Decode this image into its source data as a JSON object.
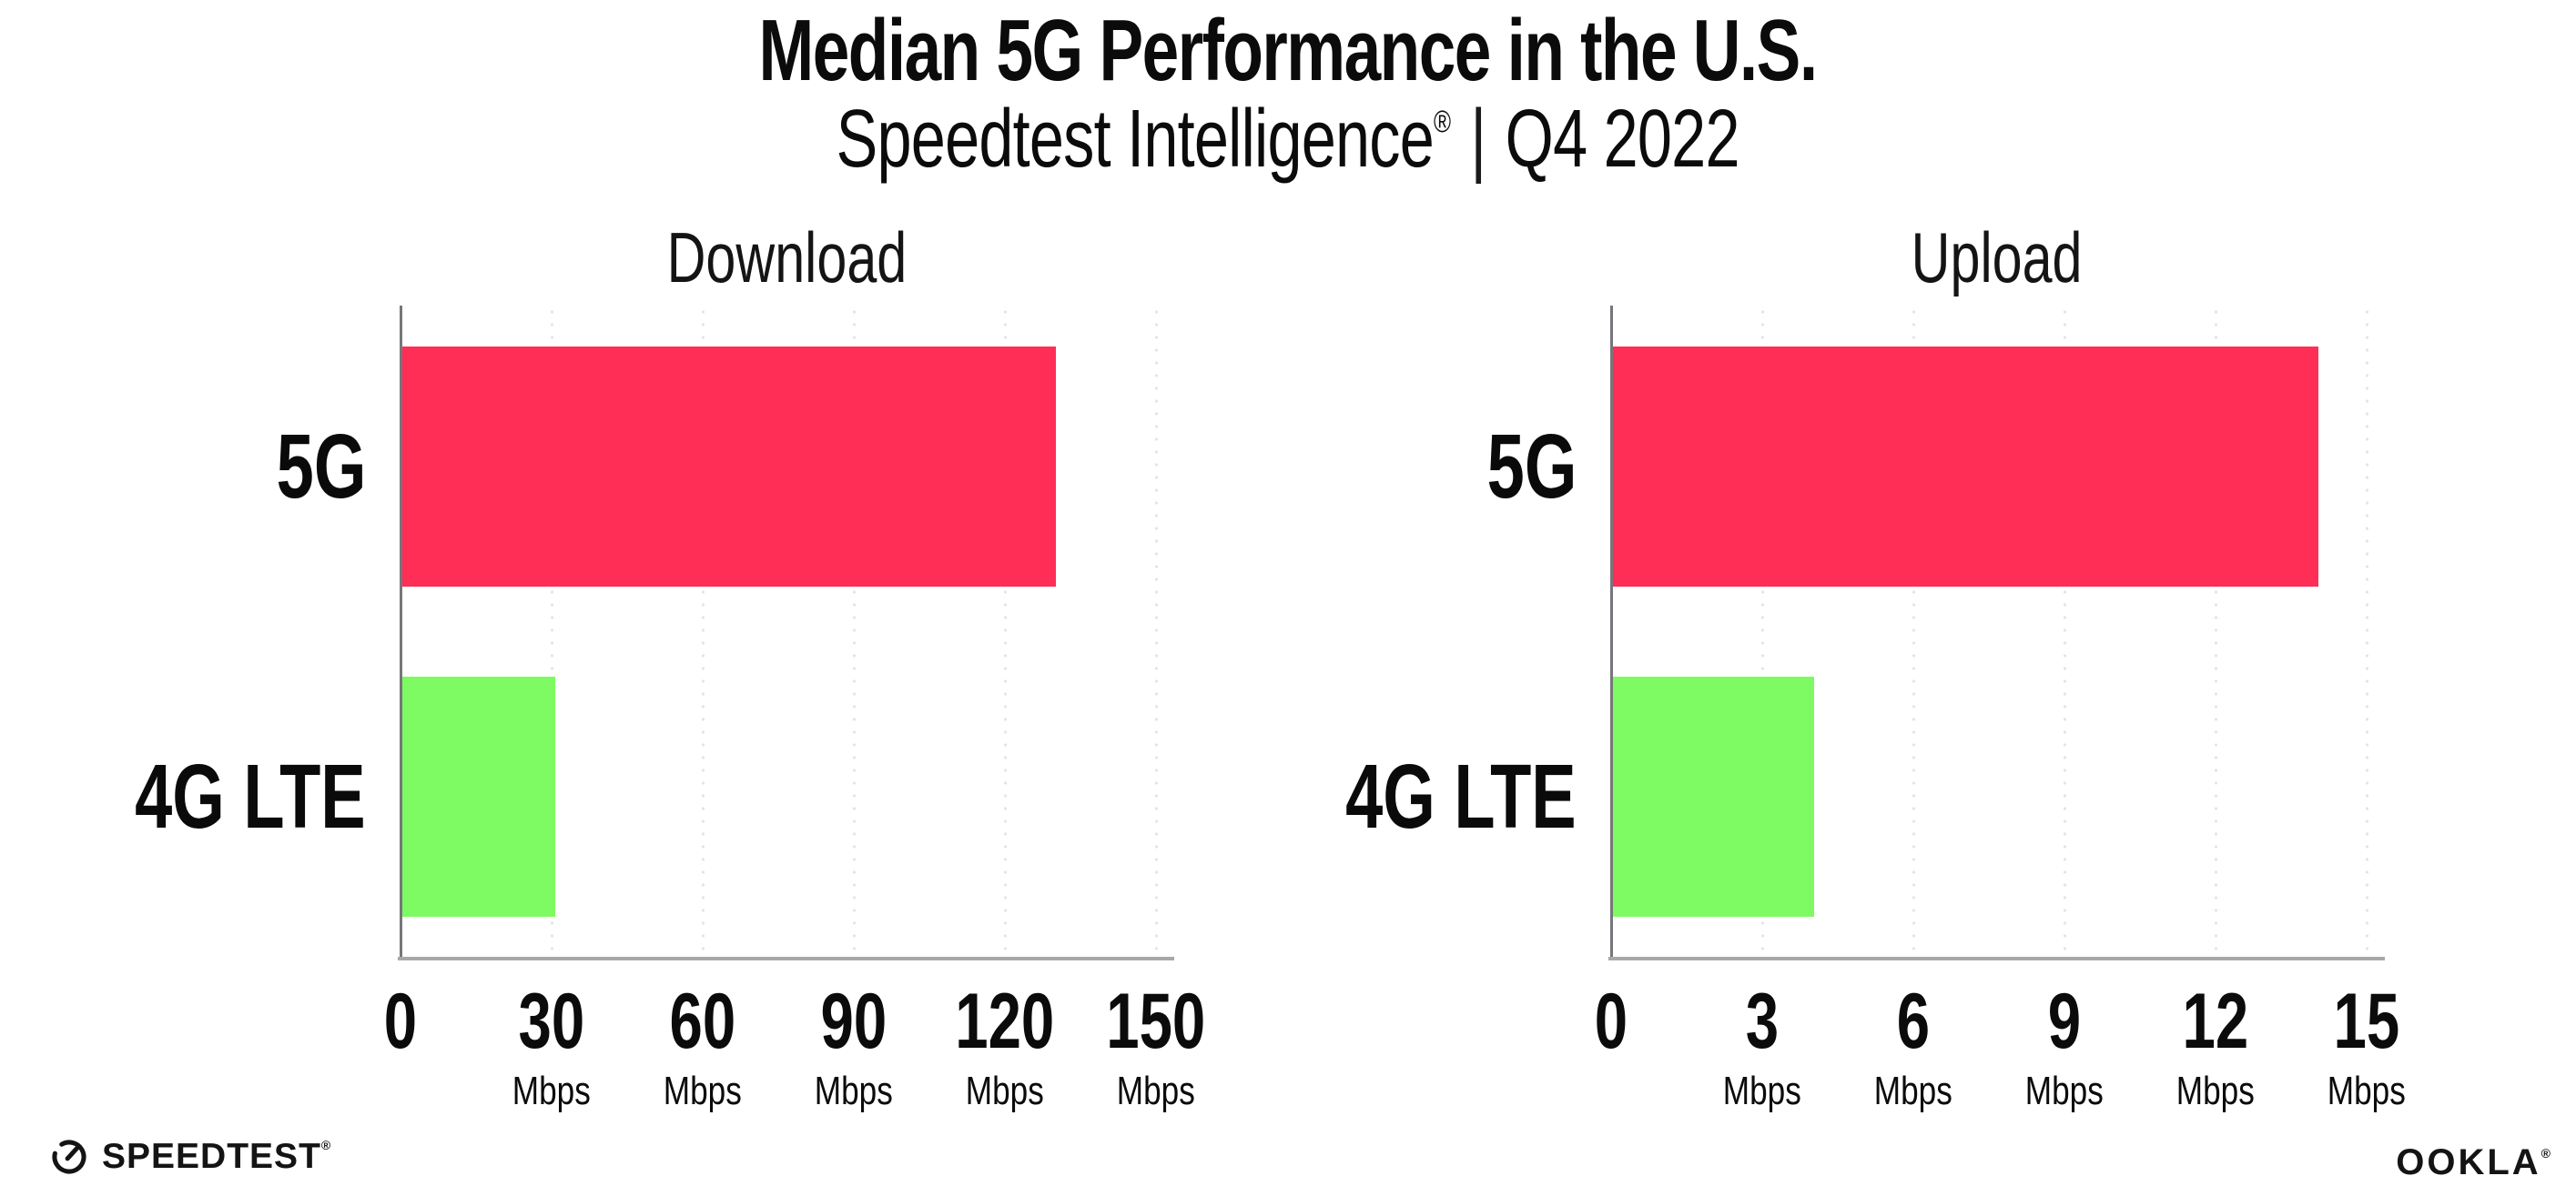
{
  "header": {
    "title": "Median 5G Performance in the U.S.",
    "subtitle_brand": "Speedtest Intelligence",
    "subtitle_reg_mark": "®",
    "subtitle_divider": "|",
    "subtitle_period": "Q4 2022"
  },
  "colors": {
    "bar_5g": "#FF2E56",
    "bar_4g_lte": "#7EFA62",
    "gridline": "#E3E3ED",
    "axis_line": "#76767B",
    "baseline": "#A8A8A8",
    "text": "#0B0B0C"
  },
  "chart_data": [
    {
      "type": "bar",
      "orientation": "horizontal",
      "title": "Download",
      "categories": [
        "5G",
        "4G LTE"
      ],
      "values": [
        129.8,
        30.4
      ],
      "unit": "Mbps",
      "xlim": [
        0,
        150
      ],
      "xticks": [
        0,
        30,
        60,
        90,
        120,
        150
      ],
      "tick_unit_label": "Mbps",
      "bar_colors": [
        "#FF2E56",
        "#7EFA62"
      ],
      "grid": "dotted-vertical",
      "legend": "none"
    },
    {
      "type": "bar",
      "orientation": "horizontal",
      "title": "Upload",
      "categories": [
        "5G",
        "4G LTE"
      ],
      "values": [
        14.0,
        4.0
      ],
      "unit": "Mbps",
      "xlim": [
        0,
        15
      ],
      "xticks": [
        0,
        3,
        6,
        9,
        12,
        15
      ],
      "tick_unit_label": "Mbps",
      "bar_colors": [
        "#FF2E56",
        "#7EFA62"
      ],
      "grid": "dotted-vertical",
      "legend": "none"
    }
  ],
  "footer": {
    "speedtest_logo_text": "SPEEDTEST",
    "speedtest_reg_mark": "®",
    "gauge_icon": "gauge-icon",
    "ookla_logo_text": "OOKLA",
    "ookla_reg_mark": "®"
  }
}
